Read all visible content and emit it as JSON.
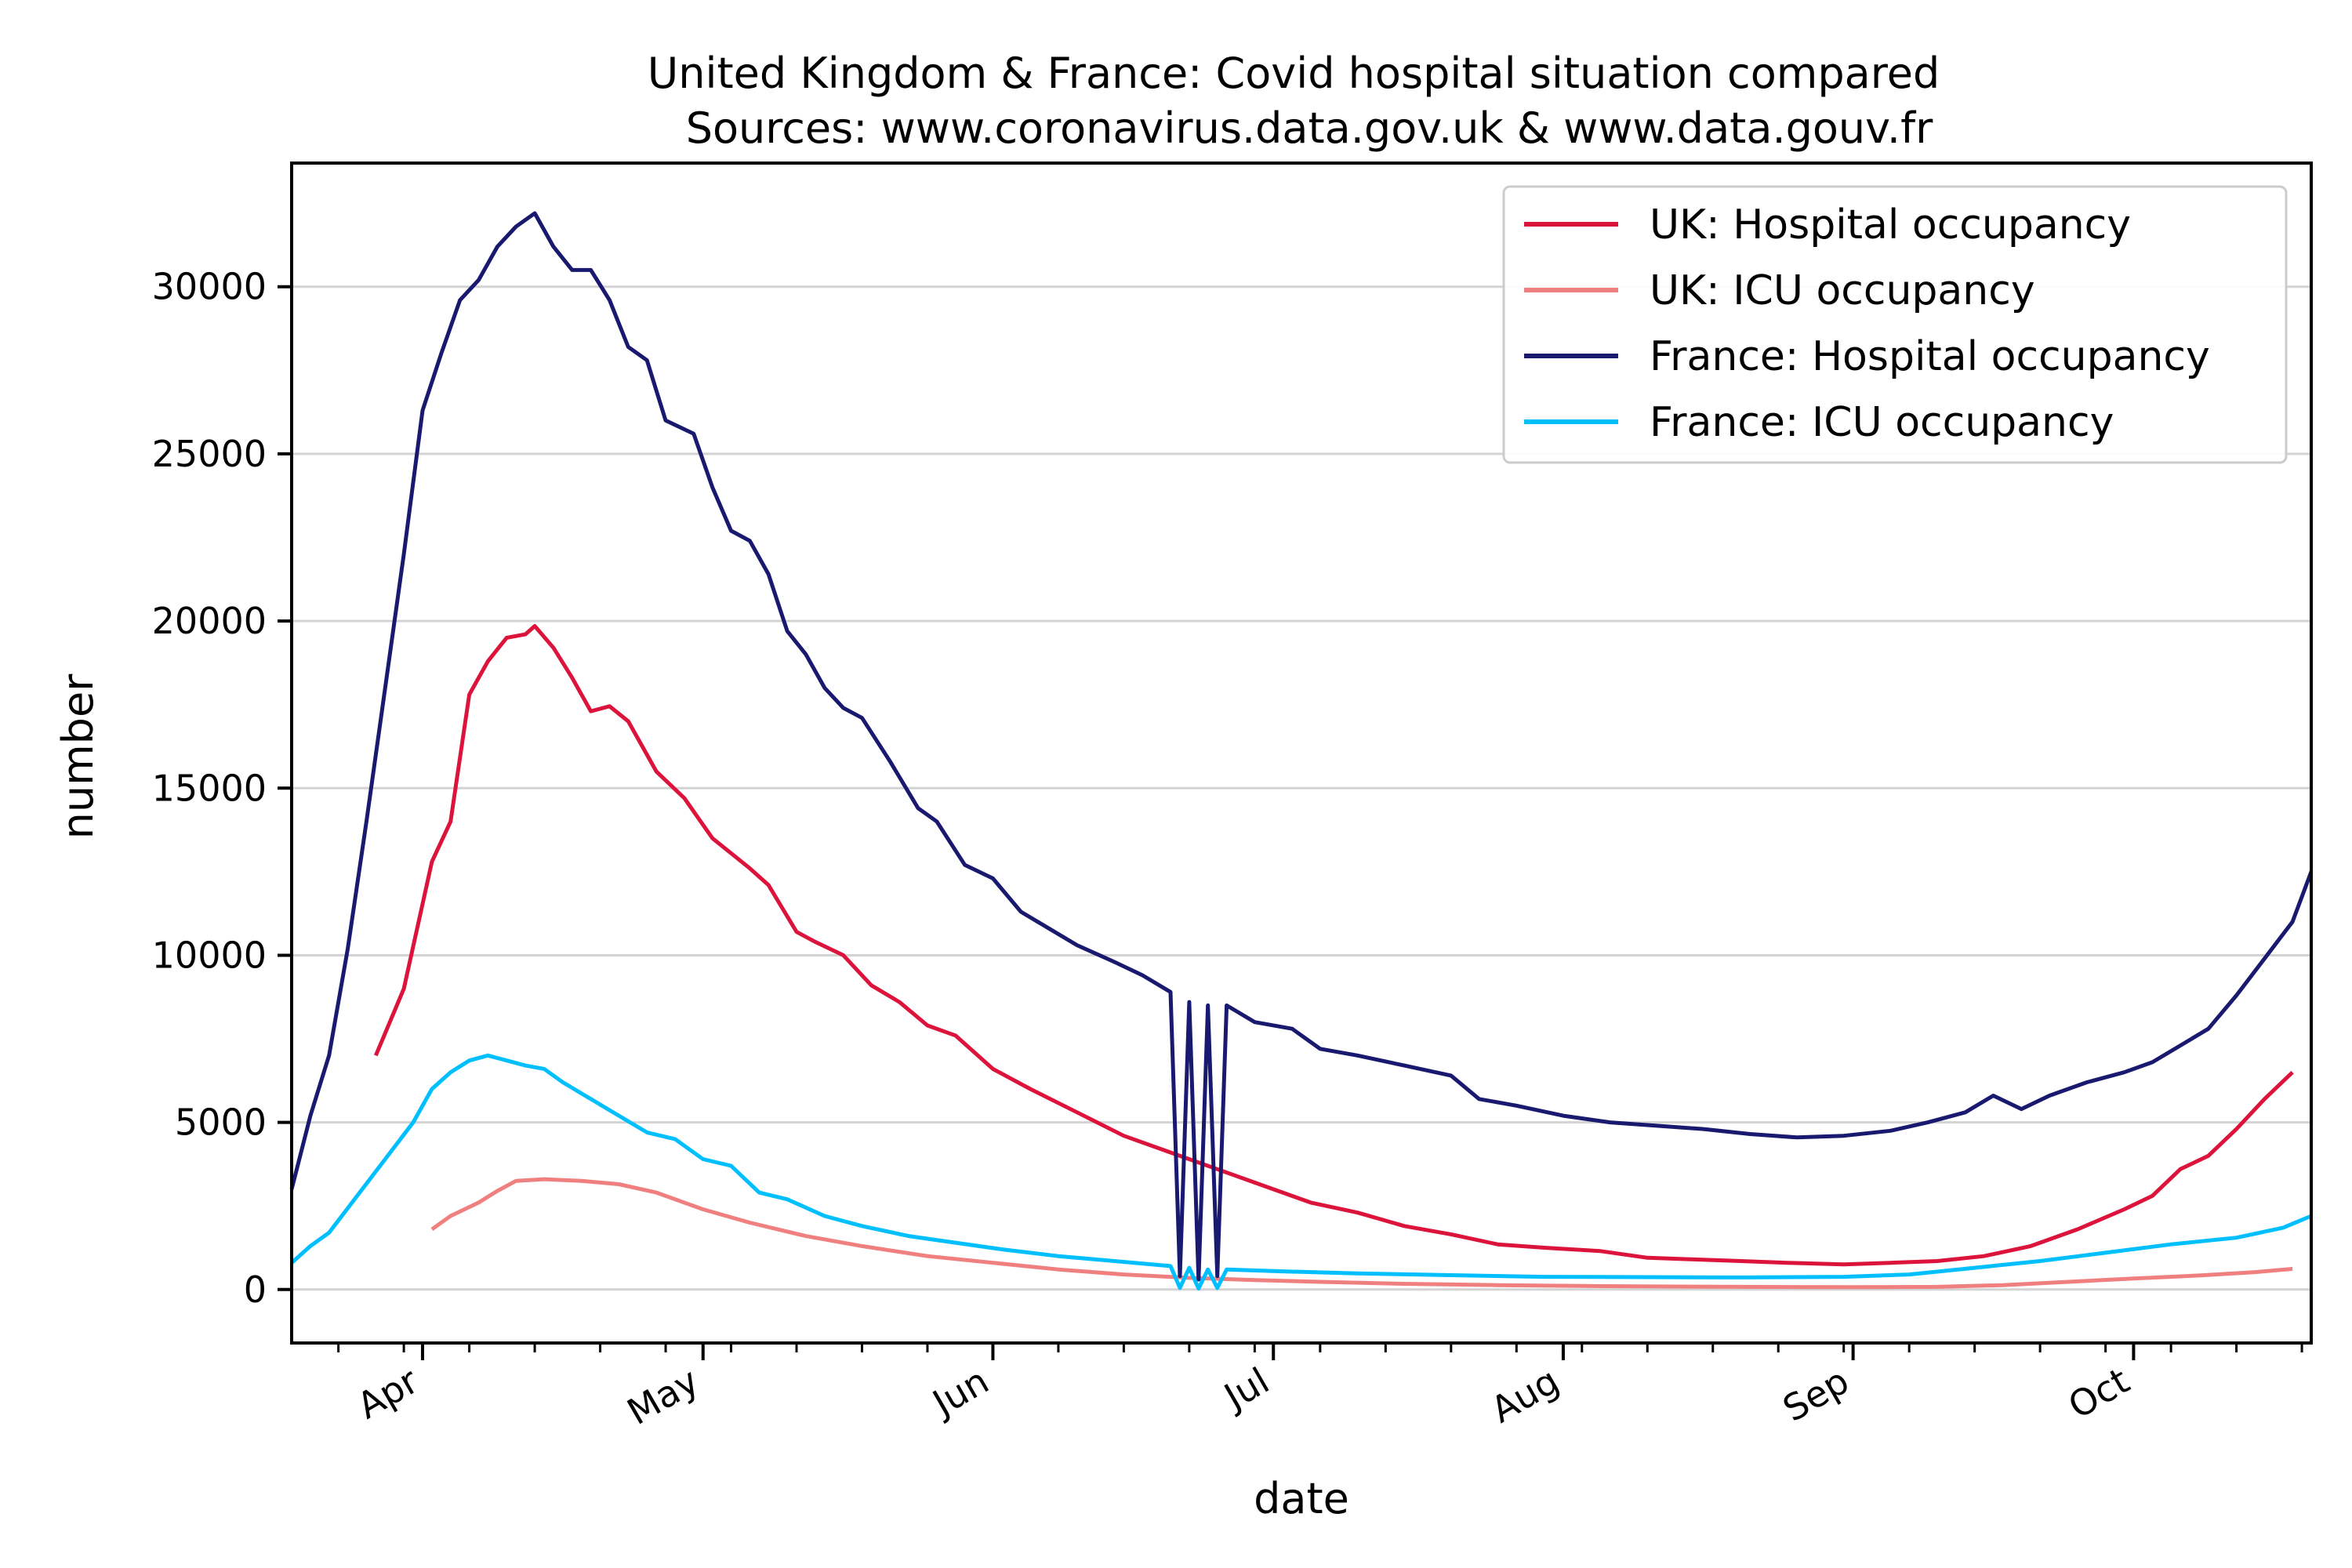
{
  "chart_data": {
    "type": "line",
    "title": "United Kingdom & France: Covid hospital situation compared",
    "subtitle": "Sources: www.coronavirus.data.gov.uk & www.data.gouv.fr",
    "xlabel": "date",
    "ylabel": "number",
    "xlim": [
      "2020-03-18",
      "2020-10-20"
    ],
    "ylim": [
      -1600,
      33700
    ],
    "x_ticks": [
      {
        "label": "Apr",
        "date": "2020-04-01"
      },
      {
        "label": "May",
        "date": "2020-05-01"
      },
      {
        "label": "Jun",
        "date": "2020-06-01"
      },
      {
        "label": "Jul",
        "date": "2020-07-01"
      },
      {
        "label": "Aug",
        "date": "2020-08-01"
      },
      {
        "label": "Sep",
        "date": "2020-09-01"
      },
      {
        "label": "Oct",
        "date": "2020-10-01"
      }
    ],
    "y_ticks": [
      0,
      5000,
      10000,
      15000,
      20000,
      25000,
      30000
    ],
    "grid": "horizontal",
    "legend_position": "top-right",
    "series": [
      {
        "name": "UK: Hospital occupancy",
        "color": "#dc143c",
        "points": [
          [
            "2020-03-27",
            7000
          ],
          [
            "2020-03-30",
            9000
          ],
          [
            "2020-04-02",
            12800
          ],
          [
            "2020-04-04",
            14000
          ],
          [
            "2020-04-06",
            17800
          ],
          [
            "2020-04-08",
            18800
          ],
          [
            "2020-04-10",
            19500
          ],
          [
            "2020-04-12",
            19600
          ],
          [
            "2020-04-13",
            19850
          ],
          [
            "2020-04-15",
            19200
          ],
          [
            "2020-04-17",
            18300
          ],
          [
            "2020-04-19",
            17300
          ],
          [
            "2020-04-21",
            17450
          ],
          [
            "2020-04-23",
            17000
          ],
          [
            "2020-04-26",
            15500
          ],
          [
            "2020-04-29",
            14700
          ],
          [
            "2020-05-02",
            13500
          ],
          [
            "2020-05-06",
            12600
          ],
          [
            "2020-05-08",
            12100
          ],
          [
            "2020-05-11",
            10700
          ],
          [
            "2020-05-13",
            10400
          ],
          [
            "2020-05-16",
            10000
          ],
          [
            "2020-05-19",
            9100
          ],
          [
            "2020-05-22",
            8600
          ],
          [
            "2020-05-25",
            7900
          ],
          [
            "2020-05-28",
            7600
          ],
          [
            "2020-06-01",
            6600
          ],
          [
            "2020-06-05",
            6000
          ],
          [
            "2020-06-10",
            5300
          ],
          [
            "2020-06-15",
            4600
          ],
          [
            "2020-06-20",
            4100
          ],
          [
            "2020-06-25",
            3600
          ],
          [
            "2020-06-29",
            3200
          ],
          [
            "2020-07-05",
            2600
          ],
          [
            "2020-07-10",
            2300
          ],
          [
            "2020-07-15",
            1900
          ],
          [
            "2020-07-20",
            1650
          ],
          [
            "2020-07-25",
            1350
          ],
          [
            "2020-07-30",
            1250
          ],
          [
            "2020-08-05",
            1150
          ],
          [
            "2020-08-10",
            950
          ],
          [
            "2020-08-15",
            900
          ],
          [
            "2020-08-20",
            850
          ],
          [
            "2020-08-25",
            800
          ],
          [
            "2020-08-31",
            750
          ],
          [
            "2020-09-05",
            800
          ],
          [
            "2020-09-10",
            850
          ],
          [
            "2020-09-15",
            1000
          ],
          [
            "2020-09-20",
            1300
          ],
          [
            "2020-09-25",
            1800
          ],
          [
            "2020-09-30",
            2400
          ],
          [
            "2020-10-03",
            2800
          ],
          [
            "2020-10-06",
            3600
          ],
          [
            "2020-10-09",
            4000
          ],
          [
            "2020-10-12",
            4800
          ],
          [
            "2020-10-15",
            5700
          ],
          [
            "2020-10-18",
            6500
          ]
        ]
      },
      {
        "name": "UK: ICU occupancy",
        "color": "#f08080",
        "points": [
          [
            "2020-04-02",
            1800
          ],
          [
            "2020-04-04",
            2200
          ],
          [
            "2020-04-07",
            2600
          ],
          [
            "2020-04-09",
            2950
          ],
          [
            "2020-04-11",
            3250
          ],
          [
            "2020-04-14",
            3300
          ],
          [
            "2020-04-18",
            3250
          ],
          [
            "2020-04-22",
            3150
          ],
          [
            "2020-04-26",
            2900
          ],
          [
            "2020-05-01",
            2400
          ],
          [
            "2020-05-06",
            2000
          ],
          [
            "2020-05-12",
            1600
          ],
          [
            "2020-05-18",
            1300
          ],
          [
            "2020-05-25",
            1000
          ],
          [
            "2020-06-01",
            800
          ],
          [
            "2020-06-08",
            600
          ],
          [
            "2020-06-15",
            450
          ],
          [
            "2020-06-22",
            350
          ],
          [
            "2020-06-29",
            280
          ],
          [
            "2020-07-06",
            230
          ],
          [
            "2020-07-15",
            170
          ],
          [
            "2020-07-25",
            130
          ],
          [
            "2020-08-05",
            100
          ],
          [
            "2020-08-20",
            80
          ],
          [
            "2020-09-01",
            70
          ],
          [
            "2020-09-10",
            80
          ],
          [
            "2020-09-17",
            130
          ],
          [
            "2020-09-24",
            230
          ],
          [
            "2020-10-01",
            330
          ],
          [
            "2020-10-08",
            420
          ],
          [
            "2020-10-14",
            520
          ],
          [
            "2020-10-18",
            620
          ]
        ]
      },
      {
        "name": "France: Hospital occupancy",
        "color": "#191970",
        "points": [
          [
            "2020-03-18",
            3000
          ],
          [
            "2020-03-20",
            5200
          ],
          [
            "2020-03-22",
            7000
          ],
          [
            "2020-03-24",
            10200
          ],
          [
            "2020-03-26",
            14000
          ],
          [
            "2020-03-28",
            18000
          ],
          [
            "2020-03-30",
            22000
          ],
          [
            "2020-04-01",
            26300
          ],
          [
            "2020-04-03",
            28000
          ],
          [
            "2020-04-05",
            29600
          ],
          [
            "2020-04-07",
            30200
          ],
          [
            "2020-04-09",
            31200
          ],
          [
            "2020-04-11",
            31800
          ],
          [
            "2020-04-13",
            32200
          ],
          [
            "2020-04-15",
            31200
          ],
          [
            "2020-04-17",
            30500
          ],
          [
            "2020-04-19",
            30500
          ],
          [
            "2020-04-21",
            29600
          ],
          [
            "2020-04-23",
            28200
          ],
          [
            "2020-04-25",
            27800
          ],
          [
            "2020-04-27",
            26000
          ],
          [
            "2020-04-30",
            25600
          ],
          [
            "2020-05-02",
            24000
          ],
          [
            "2020-05-04",
            22700
          ],
          [
            "2020-05-06",
            22400
          ],
          [
            "2020-05-08",
            21400
          ],
          [
            "2020-05-10",
            19700
          ],
          [
            "2020-05-12",
            19000
          ],
          [
            "2020-05-14",
            18000
          ],
          [
            "2020-05-16",
            17400
          ],
          [
            "2020-05-18",
            17100
          ],
          [
            "2020-05-21",
            15800
          ],
          [
            "2020-05-24",
            14400
          ],
          [
            "2020-05-26",
            14000
          ],
          [
            "2020-05-29",
            12700
          ],
          [
            "2020-06-01",
            12300
          ],
          [
            "2020-06-04",
            11300
          ],
          [
            "2020-06-07",
            10800
          ],
          [
            "2020-06-10",
            10300
          ],
          [
            "2020-06-14",
            9800
          ],
          [
            "2020-06-17",
            9400
          ],
          [
            "2020-06-20",
            8900
          ],
          [
            "2020-06-21",
            400
          ],
          [
            "2020-06-22",
            8600
          ],
          [
            "2020-06-23",
            300
          ],
          [
            "2020-06-24",
            8500
          ],
          [
            "2020-06-25",
            400
          ],
          [
            "2020-06-26",
            8500
          ],
          [
            "2020-06-29",
            8000
          ],
          [
            "2020-07-03",
            7800
          ],
          [
            "2020-07-06",
            7200
          ],
          [
            "2020-07-10",
            7000
          ],
          [
            "2020-07-15",
            6700
          ],
          [
            "2020-07-20",
            6400
          ],
          [
            "2020-07-23",
            5700
          ],
          [
            "2020-07-27",
            5500
          ],
          [
            "2020-08-01",
            5200
          ],
          [
            "2020-08-06",
            5000
          ],
          [
            "2020-08-11",
            4900
          ],
          [
            "2020-08-16",
            4800
          ],
          [
            "2020-08-21",
            4650
          ],
          [
            "2020-08-26",
            4550
          ],
          [
            "2020-08-31",
            4600
          ],
          [
            "2020-09-05",
            4750
          ],
          [
            "2020-09-09",
            5000
          ],
          [
            "2020-09-13",
            5300
          ],
          [
            "2020-09-16",
            5800
          ],
          [
            "2020-09-19",
            5400
          ],
          [
            "2020-09-22",
            5800
          ],
          [
            "2020-09-26",
            6200
          ],
          [
            "2020-09-30",
            6500
          ],
          [
            "2020-10-03",
            6800
          ],
          [
            "2020-10-06",
            7300
          ],
          [
            "2020-10-09",
            7800
          ],
          [
            "2020-10-12",
            8800
          ],
          [
            "2020-10-15",
            9900
          ],
          [
            "2020-10-18",
            11000
          ],
          [
            "2020-10-20",
            12500
          ]
        ]
      },
      {
        "name": "France: ICU occupancy",
        "color": "#00bfff",
        "points": [
          [
            "2020-03-18",
            800
          ],
          [
            "2020-03-20",
            1300
          ],
          [
            "2020-03-22",
            1700
          ],
          [
            "2020-03-25",
            2800
          ],
          [
            "2020-03-28",
            3900
          ],
          [
            "2020-03-31",
            5000
          ],
          [
            "2020-04-02",
            6000
          ],
          [
            "2020-04-04",
            6500
          ],
          [
            "2020-04-06",
            6850
          ],
          [
            "2020-04-08",
            7000
          ],
          [
            "2020-04-10",
            6850
          ],
          [
            "2020-04-12",
            6700
          ],
          [
            "2020-04-14",
            6600
          ],
          [
            "2020-04-16",
            6200
          ],
          [
            "2020-04-19",
            5700
          ],
          [
            "2020-04-22",
            5200
          ],
          [
            "2020-04-25",
            4700
          ],
          [
            "2020-04-28",
            4500
          ],
          [
            "2020-05-01",
            3900
          ],
          [
            "2020-05-04",
            3700
          ],
          [
            "2020-05-07",
            2900
          ],
          [
            "2020-05-10",
            2700
          ],
          [
            "2020-05-14",
            2200
          ],
          [
            "2020-05-18",
            1900
          ],
          [
            "2020-05-23",
            1600
          ],
          [
            "2020-05-28",
            1400
          ],
          [
            "2020-06-02",
            1200
          ],
          [
            "2020-06-08",
            1000
          ],
          [
            "2020-06-14",
            850
          ],
          [
            "2020-06-20",
            700
          ],
          [
            "2020-06-21",
            50
          ],
          [
            "2020-06-22",
            650
          ],
          [
            "2020-06-23",
            30
          ],
          [
            "2020-06-24",
            600
          ],
          [
            "2020-06-25",
            50
          ],
          [
            "2020-06-26",
            600
          ],
          [
            "2020-07-01",
            550
          ],
          [
            "2020-07-10",
            480
          ],
          [
            "2020-07-20",
            430
          ],
          [
            "2020-07-30",
            380
          ],
          [
            "2020-08-10",
            370
          ],
          [
            "2020-08-20",
            360
          ],
          [
            "2020-08-31",
            380
          ],
          [
            "2020-09-07",
            450
          ],
          [
            "2020-09-14",
            650
          ],
          [
            "2020-09-21",
            850
          ],
          [
            "2020-09-28",
            1100
          ],
          [
            "2020-10-05",
            1350
          ],
          [
            "2020-10-12",
            1550
          ],
          [
            "2020-10-17",
            1850
          ],
          [
            "2020-10-20",
            2200
          ]
        ]
      }
    ]
  }
}
